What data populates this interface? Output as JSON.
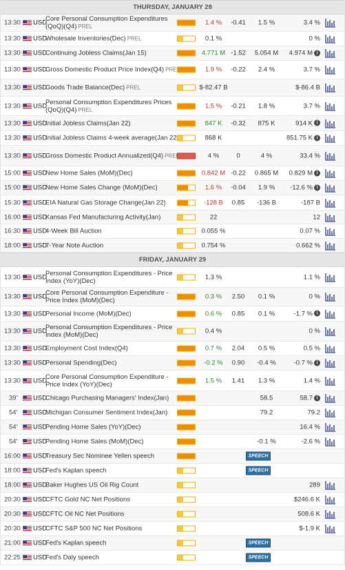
{
  "days": [
    {
      "title": "THURSDAY, JANUARY 28",
      "events": [
        {
          "time": "13:30",
          "currency": "USD",
          "name": "Core Personal Consumption Expenditures (QoQ)(Q4)",
          "tag": "PREL",
          "wrap": true,
          "h": 25,
          "impact": "high",
          "actual": "1.4 %",
          "actual_color": "down",
          "deviation": "-0.41",
          "consensus": "1.5 %",
          "previous": "3.4 %",
          "chart": true
        },
        {
          "time": "13:30",
          "currency": "USD",
          "name": "Wholesale Inventories(Dec)",
          "tag": "PREL",
          "h": 21,
          "impact": "low",
          "actual": "0.1 %",
          "actual_color": "neu",
          "deviation": "",
          "consensus": "",
          "previous": "0 %",
          "chart": true
        },
        {
          "time": "13:30",
          "currency": "USD",
          "name": "Continuing Jobless Claims(Jan 15)",
          "tag": "",
          "h": 21,
          "impact": "high",
          "actual": "4.771 M",
          "actual_color": "up",
          "deviation": "-1.52",
          "consensus": "5.054 M",
          "previous": "4.974 M",
          "previous_info": true,
          "chart": true
        },
        {
          "time": "13:30",
          "currency": "USD",
          "name": "Gross Domestic Product Price Index(Q4)",
          "tag": "PREL",
          "h": 27,
          "impact": "high",
          "actual": "1.9 %",
          "actual_color": "down",
          "deviation": "-0.22",
          "consensus": "2.4 %",
          "previous": "3.7 %",
          "chart": true
        },
        {
          "time": "13:30",
          "currency": "USD",
          "name": "Goods Trade Balance(Dec)",
          "tag": "PREL",
          "h": 25,
          "impact": "low",
          "actual": "$-82.47 B",
          "actual_color": "neu",
          "deviation": "",
          "consensus": "",
          "previous": "$-86.4 B",
          "chart": true
        },
        {
          "time": "13:30",
          "currency": "USD",
          "name": "Personal Consumption Expenditures Prices (QoQ)(Q4)",
          "tag": "PREL",
          "wrap": true,
          "h": 28,
          "impact": "high",
          "actual": "1.5 %",
          "actual_color": "down",
          "deviation": "-0.21",
          "consensus": "1.8 %",
          "previous": "3.7 %",
          "chart": true
        },
        {
          "time": "13:30",
          "currency": "USD",
          "name": "Initial Jobless Claims(Jan 22)",
          "tag": "",
          "h": 22,
          "impact": "high",
          "actual": "847 K",
          "actual_color": "up",
          "deviation": "-0.32",
          "consensus": "875 K",
          "previous": "914 K",
          "previous_info": true,
          "chart": true
        },
        {
          "time": "13:30",
          "currency": "USD",
          "name": "Initial Jobless Claims 4-week average(Jan 22)",
          "tag": "",
          "h": 21,
          "impact": "low",
          "actual": "868 K",
          "actual_color": "neu",
          "deviation": "",
          "consensus": "",
          "previous": "851.75 K",
          "previous_info": true,
          "chart": true
        },
        {
          "time": "13:30",
          "currency": "USD",
          "name": "Gross Domestic Product Annualized(Q4)",
          "tag": "PREL",
          "h": 30,
          "impact": "red",
          "actual": "4 %",
          "actual_color": "neu",
          "deviation": "0",
          "consensus": "4 %",
          "previous": "33.4 %",
          "chart": true
        },
        {
          "time": "15:00",
          "currency": "USD",
          "name": "New Home Sales (MoM)(Dec)",
          "tag": "",
          "h": 21,
          "impact": "high",
          "actual": "0.842 M",
          "actual_color": "down",
          "deviation": "-0.22",
          "consensus": "0.865 M",
          "previous": "0.829 M",
          "previous_info": true,
          "chart": true
        },
        {
          "time": "15:00",
          "currency": "USD",
          "name": "New Home Sales Change (MoM)(Dec)",
          "tag": "",
          "h": 21,
          "impact": "med",
          "actual": "1.6 %",
          "actual_color": "down",
          "deviation": "-0.04",
          "consensus": "1.9 %",
          "previous": "-12.6 %",
          "previous_info": true,
          "chart": true
        },
        {
          "time": "15:30",
          "currency": "USD",
          "name": "EIA Natural Gas Storage Change(Jan 22)",
          "tag": "",
          "h": 22,
          "impact": "med",
          "actual": "-128 B",
          "actual_color": "down",
          "deviation": "0.85",
          "consensus": "-136 B",
          "previous": "-187 B",
          "chart": true
        },
        {
          "time": "16:00",
          "currency": "USD",
          "name": "Kansas Fed Manufacturing Activity(Jan)",
          "tag": "",
          "h": 20,
          "impact": "low",
          "actual": "22",
          "actual_color": "neu",
          "deviation": "",
          "consensus": "",
          "previous": "12",
          "chart": true
        },
        {
          "time": "16:30",
          "currency": "USD",
          "name": "4-Week Bill Auction",
          "tag": "",
          "h": 21,
          "impact": "low",
          "actual": "0.055 %",
          "actual_color": "neu",
          "deviation": "",
          "consensus": "",
          "previous": "0.07 %",
          "chart": true
        },
        {
          "time": "18:00",
          "currency": "USD",
          "name": "7-Year Note Auction",
          "tag": "",
          "h": 20,
          "impact": "low",
          "actual": "0.754 %",
          "actual_color": "neu",
          "deviation": "",
          "consensus": "",
          "previous": "0.662 %",
          "chart": true
        }
      ]
    },
    {
      "title": "FRIDAY, JANUARY 29",
      "events": [
        {
          "time": "13:30",
          "currency": "USD",
          "name": "Personal Consumption Expenditures - Price Index (YoY)(Dec)",
          "tag": "",
          "wrap": true,
          "h": 30,
          "impact": "low",
          "actual": "1.3 %",
          "actual_color": "neu",
          "deviation": "",
          "consensus": "",
          "previous": "1.1 %",
          "chart": true
        },
        {
          "time": "13:30",
          "currency": "USD",
          "name": "Core Personal Consumption Expenditure - Price Index (MoM)(Dec)",
          "tag": "",
          "wrap": true,
          "h": 27,
          "impact": "high",
          "actual": "0.3 %",
          "actual_color": "up",
          "deviation": "2.50",
          "consensus": "0.1 %",
          "previous": "0 %",
          "chart": true
        },
        {
          "time": "13:30",
          "currency": "USD",
          "name": "Personal Income (MoM)(Dec)",
          "tag": "",
          "h": 22,
          "impact": "high",
          "actual": "0.6 %",
          "actual_color": "up",
          "deviation": "0.85",
          "consensus": "0.1 %",
          "previous": "-1.7 %",
          "previous_info": true,
          "chart": true
        },
        {
          "time": "13:30",
          "currency": "USD",
          "name": "Personal Consumption Expenditures - Price Index (MoM)(Dec)",
          "tag": "",
          "wrap": true,
          "h": 29,
          "impact": "low",
          "actual": "0.4 %",
          "actual_color": "neu",
          "deviation": "",
          "consensus": "",
          "previous": "0 %",
          "chart": true
        },
        {
          "time": "13:30",
          "currency": "USD",
          "name": "Employment Cost Index(Q4)",
          "tag": "",
          "h": 21,
          "impact": "high",
          "actual": "0.7 %",
          "actual_color": "up",
          "deviation": "2.04",
          "consensus": "0.5 %",
          "previous": "0.5 %",
          "chart": true
        },
        {
          "time": "13:30",
          "currency": "USD",
          "name": "Personal Spending(Dec)",
          "tag": "",
          "h": 21,
          "impact": "high",
          "actual": "-0.2 %",
          "actual_color": "up",
          "deviation": "0.90",
          "consensus": "-0.4 %",
          "previous": "-0.7 %",
          "previous_info": true,
          "chart": true
        },
        {
          "time": "13:30",
          "currency": "USD",
          "name": "Core Personal Consumption Expenditure - Price Index (YoY)(Dec)",
          "tag": "",
          "wrap": true,
          "h": 30,
          "impact": "high",
          "actual": "1.5 %",
          "actual_color": "up",
          "deviation": "1.41",
          "consensus": "1.3 %",
          "previous": "1.4 %",
          "chart": true
        },
        {
          "time": "39'",
          "ago": true,
          "currency": "USD",
          "name": "Chicago Purchasing Managers' Index(Jan)",
          "tag": "",
          "h": 21,
          "impact": "high",
          "actual": "",
          "actual_color": "neu",
          "deviation": "",
          "consensus": "58.5",
          "previous": "58.7",
          "previous_info": true,
          "chart": true
        },
        {
          "time": "54'",
          "ago": true,
          "currency": "USD",
          "name": "Michigan Consumer Sentiment Index(Jan)",
          "tag": "",
          "h": 21,
          "impact": "high",
          "actual": "",
          "actual_color": "neu",
          "deviation": "",
          "consensus": "79.2",
          "previous": "79.2",
          "chart": true
        },
        {
          "time": "54'",
          "ago": true,
          "currency": "USD",
          "name": "Pending Home Sales (YoY)(Dec)",
          "tag": "",
          "h": 21,
          "impact": "high",
          "actual": "",
          "actual_color": "neu",
          "deviation": "",
          "consensus": "",
          "previous": "16.4 %",
          "chart": true
        },
        {
          "time": "54'",
          "ago": true,
          "currency": "USD",
          "name": "Pending Home Sales (MoM)(Dec)",
          "tag": "",
          "h": 21,
          "impact": "high",
          "actual": "",
          "actual_color": "neu",
          "deviation": "",
          "consensus": "-0.1 %",
          "previous": "-2.6 %",
          "chart": true
        },
        {
          "time": "16:00",
          "currency": "USD",
          "name": "Treasury Sec Nominee Yellen speech",
          "tag": "",
          "h": 21,
          "impact": "high",
          "speech": "SPEECH",
          "chart": false
        },
        {
          "time": "18:00",
          "currency": "USD",
          "name": "Fed's Kaplan speech",
          "tag": "",
          "h": 21,
          "impact": "low",
          "speech": "SPEECH",
          "chart": false
        },
        {
          "time": "18:00",
          "currency": "USD",
          "name": "Baker Hughes US Oil Rig Count",
          "tag": "",
          "h": 21,
          "impact": "low",
          "actual": "",
          "actual_color": "neu",
          "deviation": "",
          "consensus": "",
          "previous": "289",
          "chart": true
        },
        {
          "time": "20:30",
          "currency": "USD",
          "name": "CFTC Gold NC Net Positions",
          "tag": "",
          "h": 21,
          "impact": "low",
          "actual": "",
          "actual_color": "neu",
          "deviation": "",
          "consensus": "",
          "previous": "$246.6 K",
          "chart": true
        },
        {
          "time": "20:30",
          "currency": "USD",
          "name": "CFTC Oil NC Net Positions",
          "tag": "",
          "h": 21,
          "impact": "low",
          "actual": "",
          "actual_color": "neu",
          "deviation": "",
          "consensus": "",
          "previous": "508.6 K",
          "chart": true
        },
        {
          "time": "20:30",
          "currency": "USD",
          "name": "CFTC S&P 500 NC Net Positions",
          "tag": "",
          "h": 21,
          "impact": "low",
          "actual": "",
          "actual_color": "neu",
          "deviation": "",
          "consensus": "",
          "previous": "$-1.9 K",
          "chart": true
        },
        {
          "time": "21:00",
          "currency": "USD",
          "name": "Fed's Kaplan speech",
          "tag": "",
          "h": 21,
          "impact": "low",
          "speech": "SPEECH",
          "chart": false
        },
        {
          "time": "22:25",
          "currency": "USD",
          "name": "Fed's Daly speech",
          "tag": "",
          "h": 21,
          "impact": "low",
          "speech": "SPEECH",
          "chart": false
        }
      ]
    }
  ]
}
